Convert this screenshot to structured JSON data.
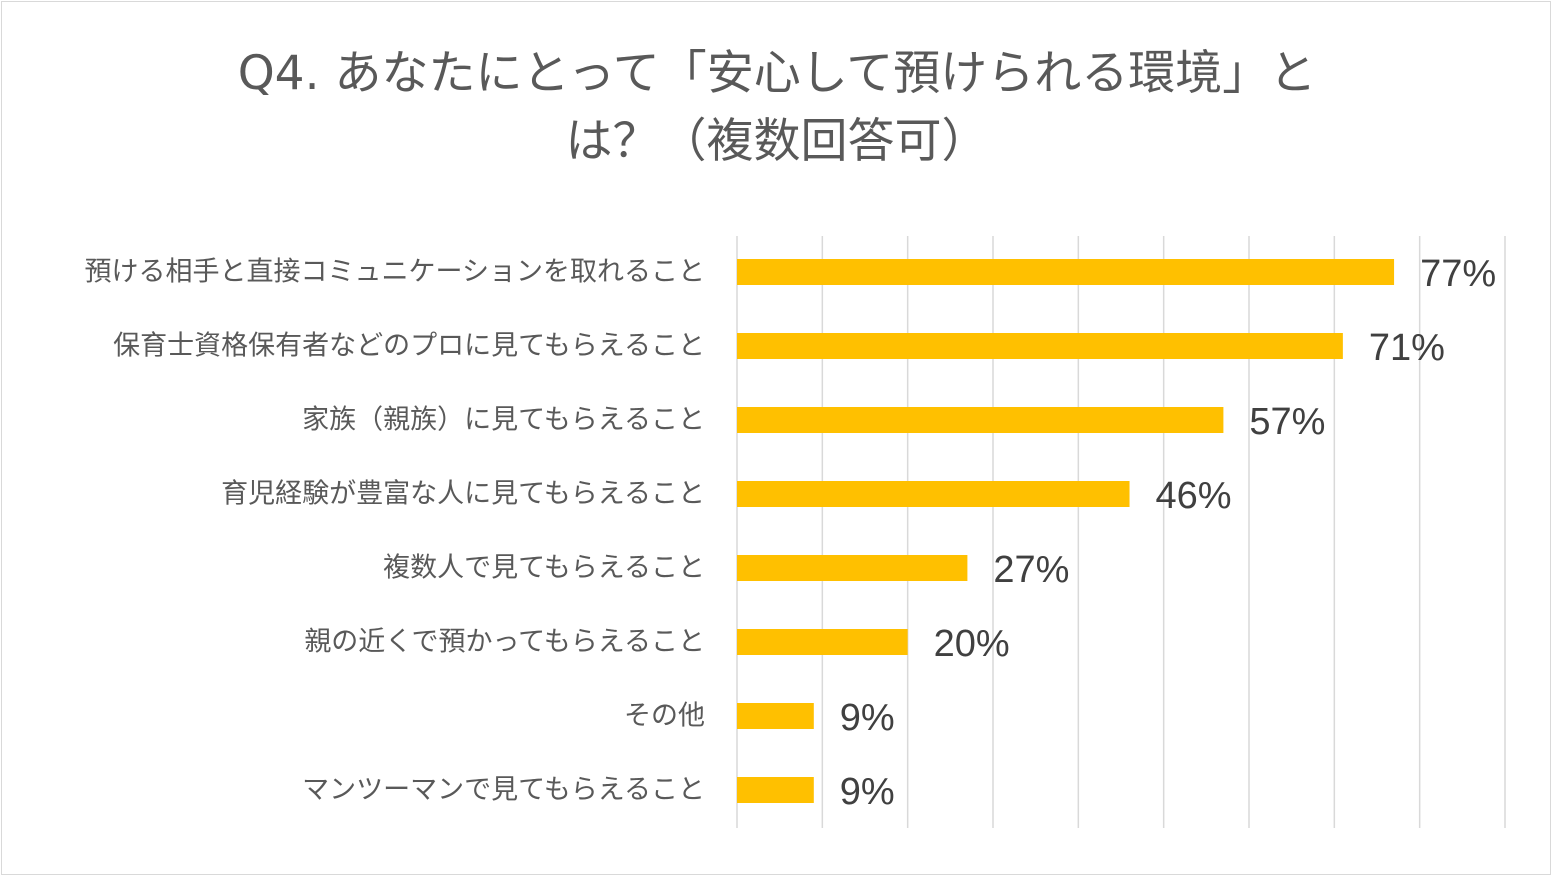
{
  "chart_data": {
    "type": "bar",
    "orientation": "horizontal",
    "title_lines": [
      "Q4. あなたにとって「安心して預けられる環境」と",
      "は？（複数回答可）"
    ],
    "categories": [
      "預ける相手と直接コミュニケーションを取れること",
      "保育士資格保有者などのプロに見てもらえること",
      "家族（親族）に見てもらえること",
      "育児経験が豊富な人に見てもらえること",
      "複数人で見てもらえること",
      "親の近くで預かってもらえること",
      "その他",
      "マンツーマンで見てもらえること"
    ],
    "values": [
      77,
      71,
      57,
      46,
      27,
      20,
      9,
      9
    ],
    "value_labels": [
      "77%",
      "71%",
      "57%",
      "46%",
      "27%",
      "20%",
      "9%",
      "9%"
    ],
    "xlim": [
      0,
      90
    ],
    "gridlines": true,
    "gridline_step": 10,
    "legend": false,
    "colors": {
      "bar": "#ffc000",
      "grid": "#d9d9d9",
      "category_text": "#595959",
      "value_text": "#404040",
      "title_text": "#595959"
    }
  }
}
